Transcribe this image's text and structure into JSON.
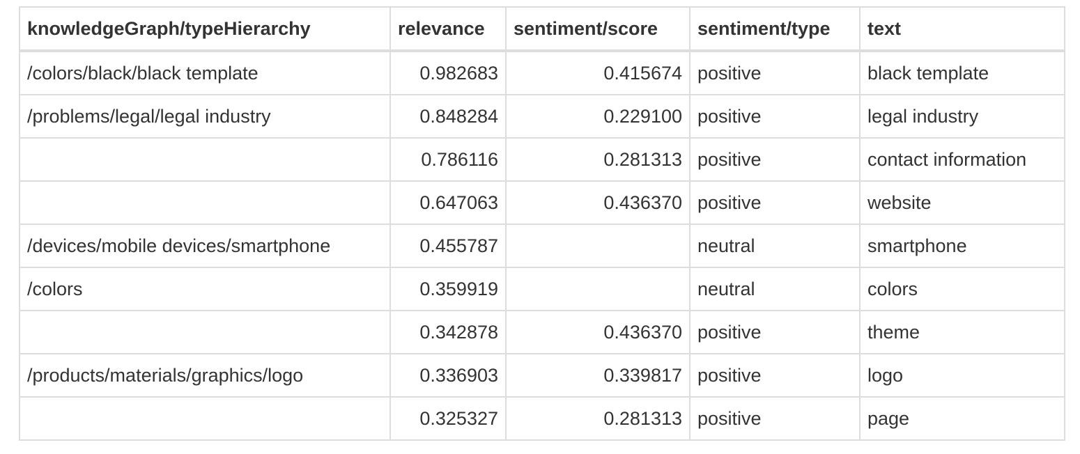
{
  "table": {
    "headers": [
      "knowledgeGraph/typeHierarchy",
      "relevance",
      "sentiment/score",
      "sentiment/type",
      "text"
    ],
    "rows": [
      [
        "/colors/black/black template",
        "0.982683",
        "0.415674",
        "positive",
        "black template"
      ],
      [
        "/problems/legal/legal industry",
        "0.848284",
        "0.229100",
        "positive",
        "legal industry"
      ],
      [
        "",
        "0.786116",
        "0.281313",
        "positive",
        "contact information"
      ],
      [
        "",
        "0.647063",
        "0.436370",
        "positive",
        "website"
      ],
      [
        "/devices/mobile devices/smartphone",
        "0.455787",
        "",
        "neutral",
        "smartphone"
      ],
      [
        "/colors",
        "0.359919",
        "",
        "neutral",
        "colors"
      ],
      [
        "",
        "0.342878",
        "0.436370",
        "positive",
        "theme"
      ],
      [
        "/products/materials/graphics/logo",
        "0.336903",
        "0.339817",
        "positive",
        "logo"
      ],
      [
        "",
        "0.325327",
        "0.281313",
        "positive",
        "page"
      ]
    ]
  }
}
